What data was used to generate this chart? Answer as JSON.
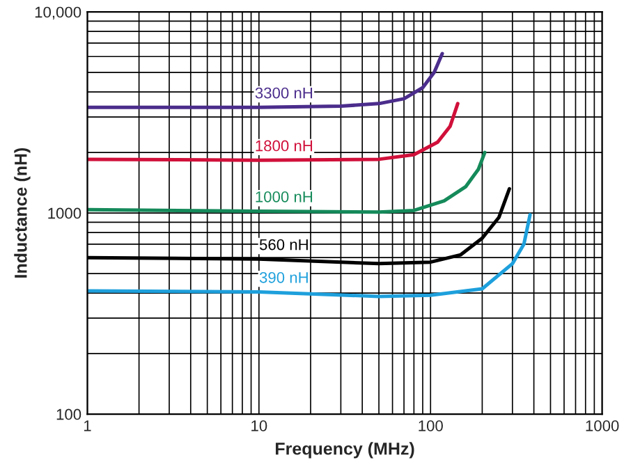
{
  "chart_data": {
    "type": "line",
    "xlabel": "Frequency (MHz)",
    "ylabel": "Inductance (nH)",
    "log": "xy",
    "xlim": [
      1,
      1000
    ],
    "ylim": [
      100,
      10000
    ],
    "xticks": [
      1,
      10,
      100,
      1000
    ],
    "yticks": [
      100,
      1000,
      {
        "value": 10000,
        "label": "10,000"
      }
    ],
    "grid": true,
    "legend": false,
    "marker": "none",
    "line_style": "solid",
    "series": [
      {
        "name": "3300 nH",
        "color": "#4b2d8c",
        "x": [
          1,
          10,
          30,
          50,
          70,
          90,
          105,
          117
        ],
        "values": [
          3350,
          3350,
          3400,
          3500,
          3700,
          4200,
          5000,
          6200
        ]
      },
      {
        "name": "1800 nH",
        "color": "#d0103a",
        "x": [
          1,
          10,
          50,
          80,
          110,
          130,
          144
        ],
        "values": [
          1850,
          1830,
          1850,
          1950,
          2250,
          2700,
          3500
        ]
      },
      {
        "name": "1000 nH",
        "color": "#158a5a",
        "x": [
          1,
          10,
          50,
          80,
          120,
          160,
          190,
          207
        ],
        "values": [
          1040,
          1020,
          1010,
          1030,
          1150,
          1350,
          1650,
          2000
        ]
      },
      {
        "name": "560 nH",
        "color": "#000000",
        "x": [
          1,
          10,
          50,
          100,
          150,
          200,
          250,
          288
        ],
        "values": [
          600,
          590,
          560,
          570,
          620,
          750,
          950,
          1320
        ]
      },
      {
        "name": "390 nH",
        "color": "#1ea0dc",
        "x": [
          1,
          10,
          50,
          100,
          200,
          300,
          350,
          380
        ],
        "values": [
          410,
          405,
          385,
          390,
          420,
          560,
          700,
          980
        ]
      }
    ]
  }
}
